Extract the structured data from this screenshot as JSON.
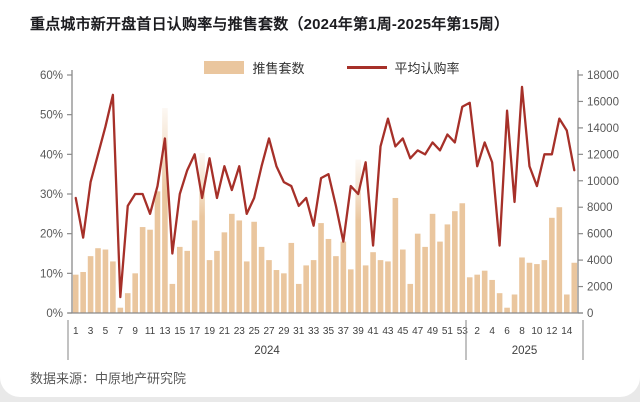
{
  "title": "重点城市新开盘首日认购率与推售套数（2024年第1周-2025年第15周）",
  "source": "数据来源：中原地产研究院",
  "legend": [
    {
      "label": "推售套数",
      "type": "bar"
    },
    {
      "label": "平均认购率",
      "type": "line"
    }
  ],
  "colors": {
    "bar": "#EAC69E",
    "line": "#A63029",
    "axis_line": "#8a8a8a",
    "axis_text": "#595959",
    "tick_text": "#404040",
    "separator": "#9a9a9a",
    "title": "#1b1b1f",
    "source_text": "#595959"
  },
  "chart_data": {
    "type": "combo-bar-line-dual-axis",
    "title": "重点城市新开盘首日认购率与推售套数（2024年第1周-2025年第15周）",
    "legend_position": "top-center",
    "grid": "off",
    "left_axis": {
      "series": "平均认购率",
      "unit": "%",
      "min": 0,
      "max": 60,
      "step": 10,
      "tick_labels": [
        "0%",
        "10%",
        "20%",
        "30%",
        "40%",
        "50%",
        "60%"
      ]
    },
    "right_axis": {
      "series": "推售套数",
      "unit": "套",
      "min": 0,
      "max": 18000,
      "step": 2000,
      "tick_labels": [
        "0",
        "2000",
        "4000",
        "6000",
        "8000",
        "10000",
        "12000",
        "14000",
        "16000",
        "18000"
      ]
    },
    "series_names": {
      "bar": "推售套数",
      "line": "平均认购率"
    },
    "groups": [
      {
        "year": "2024",
        "weeks": 53,
        "x_tick_weeks": [
          1,
          3,
          5,
          7,
          9,
          11,
          13,
          15,
          17,
          19,
          21,
          23,
          25,
          27,
          29,
          31,
          33,
          35,
          37,
          39,
          41,
          43,
          45,
          47,
          49,
          51,
          53
        ],
        "units": [
          2900,
          3100,
          4300,
          4900,
          4800,
          3900,
          400,
          1500,
          3000,
          6500,
          6300,
          9200,
          15500,
          2200,
          5000,
          4700,
          7000,
          12100,
          4000,
          4700,
          6100,
          7500,
          7000,
          3900,
          6900,
          5000,
          4000,
          3250,
          3000,
          5300,
          2200,
          3600,
          4000,
          6800,
          5600,
          4300,
          5400,
          3300,
          11600,
          3600,
          4600,
          4000,
          3900,
          8700,
          4800,
          2200,
          6000,
          5000,
          7500,
          5400,
          6700,
          7700,
          8300
        ],
        "rates": [
          29,
          19,
          33,
          40,
          47,
          55,
          4,
          27,
          30,
          30,
          25,
          32,
          44,
          15,
          30,
          36,
          40,
          29,
          39,
          29,
          37,
          31,
          37,
          25,
          29,
          37,
          44,
          37,
          33,
          32,
          27,
          29,
          22,
          34,
          35,
          27,
          18,
          32,
          30,
          38,
          17,
          42,
          49,
          42,
          44,
          39,
          41,
          40,
          43,
          41,
          45,
          43,
          52
        ]
      },
      {
        "year": "2025",
        "weeks": 15,
        "x_tick_weeks": [
          2,
          4,
          6,
          8,
          10,
          12,
          14
        ],
        "units": [
          2700,
          2900,
          3200,
          2500,
          1500,
          400,
          1400,
          4200,
          3800,
          3700,
          4000,
          7200,
          8000,
          1400,
          3800
        ],
        "rates": [
          53,
          37,
          43,
          38,
          17,
          51,
          28,
          57,
          37,
          32,
          40,
          40,
          49,
          46,
          36
        ]
      }
    ]
  }
}
